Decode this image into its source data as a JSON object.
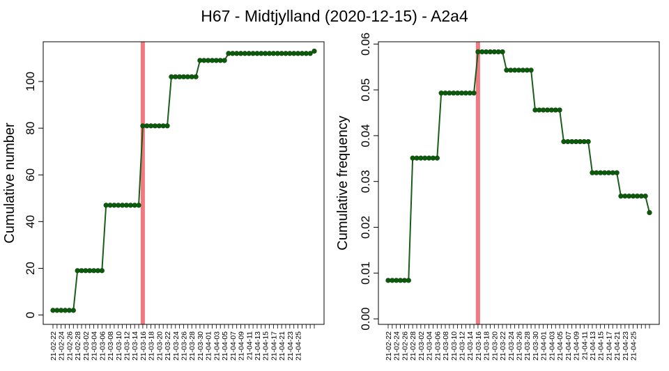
{
  "title": "H67 - Midtjylland (2020-12-15) - A2a4",
  "colors": {
    "line": "#1a5c1a",
    "marker": "#0a5c0a",
    "marker_edge": "#0b3d0b",
    "vline": "#f07a80",
    "frame": "#000000"
  },
  "chart_data": [
    {
      "type": "line",
      "ylabel": "Cumulative number",
      "ylim": [
        -4,
        117
      ],
      "yticks": [
        0,
        20,
        40,
        60,
        80,
        100
      ],
      "x_labels_every_second": [
        "21-02-22",
        "21-02-24",
        "21-02-26",
        "21-02-28",
        "21-03-02",
        "21-03-04",
        "21-03-06",
        "21-03-08",
        "21-03-10",
        "21-03-12",
        "21-03-14",
        "21-03-16",
        "21-03-18",
        "21-03-20",
        "21-03-22",
        "21-03-24",
        "21-03-26",
        "21-03-28",
        "21-03-30",
        "21-04-01",
        "21-04-03",
        "21-04-05",
        "21-04-07",
        "21-04-09",
        "21-04-11",
        "21-04-13",
        "21-04-15",
        "21-04-17",
        "21-04-21",
        "21-04-23",
        "21-04-25"
      ],
      "vline_at_day": 22,
      "x_start": "21-02-22",
      "values": [
        2,
        2,
        2,
        2,
        2,
        2,
        19,
        19,
        19,
        19,
        19,
        19,
        19,
        47,
        47,
        47,
        47,
        47,
        47,
        47,
        47,
        47,
        81,
        81,
        81,
        81,
        81,
        81,
        81,
        102,
        102,
        102,
        102,
        102,
        102,
        102,
        109,
        109,
        109,
        109,
        109,
        109,
        109,
        112,
        112,
        112,
        112,
        112,
        112,
        112,
        112,
        112,
        112,
        112,
        112,
        112,
        112,
        112,
        112,
        112,
        112,
        112,
        112,
        112,
        113
      ],
      "grid": false
    },
    {
      "type": "line",
      "ylabel": "Cumulative frequency",
      "ylim": [
        -0.0012,
        0.0605
      ],
      "yticks": [
        0.0,
        0.01,
        0.02,
        0.03,
        0.04,
        0.05,
        0.06
      ],
      "ytick_labels": [
        "0.00",
        "0.01",
        "0.02",
        "0.03",
        "0.04",
        "0.05",
        "0.06"
      ],
      "x_labels_every_second": [
        "21-02-22",
        "21-02-24",
        "21-02-26",
        "21-02-28",
        "21-03-02",
        "21-03-04",
        "21-03-06",
        "21-03-08",
        "21-03-10",
        "21-03-12",
        "21-03-14",
        "21-03-16",
        "21-03-18",
        "21-03-20",
        "21-03-22",
        "21-03-24",
        "21-03-26",
        "21-03-28",
        "21-03-30",
        "21-04-01",
        "21-04-03",
        "21-04-05",
        "21-04-07",
        "21-04-09",
        "21-04-11",
        "21-04-13",
        "21-04-15",
        "21-04-17",
        "21-04-21",
        "21-04-23",
        "21-04-25"
      ],
      "vline_at_day": 22,
      "x_start": "21-02-22",
      "values": [
        0.0084,
        0.0084,
        0.0084,
        0.0084,
        0.0084,
        0.0084,
        0.0351,
        0.0351,
        0.0351,
        0.0351,
        0.0351,
        0.0351,
        0.0351,
        0.0493,
        0.0493,
        0.0493,
        0.0493,
        0.0493,
        0.0493,
        0.0493,
        0.0493,
        0.0493,
        0.0583,
        0.0583,
        0.0583,
        0.0583,
        0.0583,
        0.0583,
        0.0583,
        0.0543,
        0.0543,
        0.0543,
        0.0543,
        0.0543,
        0.0543,
        0.0543,
        0.0456,
        0.0456,
        0.0456,
        0.0456,
        0.0456,
        0.0456,
        0.0456,
        0.0387,
        0.0387,
        0.0387,
        0.0387,
        0.0387,
        0.0387,
        0.0387,
        0.0319,
        0.0319,
        0.0319,
        0.0319,
        0.0319,
        0.0319,
        0.0319,
        0.0268,
        0.0268,
        0.0268,
        0.0268,
        0.0268,
        0.0268,
        0.0268,
        0.0232
      ],
      "grid": false
    }
  ]
}
